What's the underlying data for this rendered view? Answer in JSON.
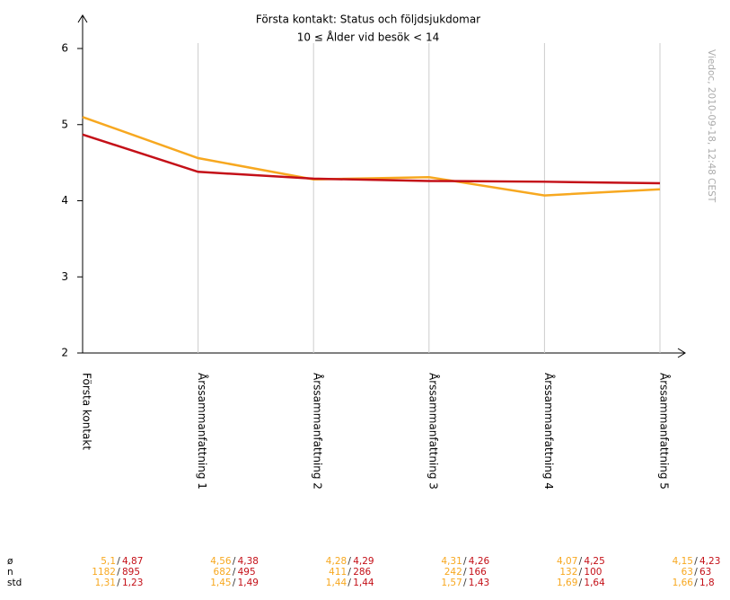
{
  "chart_data": {
    "type": "line",
    "title": "Första kontakt: Status och följdsjukdomar",
    "subtitle": "10 ≤ Ålder vid besök < 14",
    "watermark": "Viedoc, 2010-09-18, 12:48 CEST",
    "categories": [
      "Första kontakt",
      "Årssammanfattning 1",
      "Årssammanfattning 2",
      "Årssammanfattning 3",
      "Årssammanfattning 4",
      "Årssammanfattning 5"
    ],
    "series": [
      {
        "color": "#f7a820",
        "values": [
          5.1,
          4.56,
          4.28,
          4.31,
          4.07,
          4.15
        ],
        "value_labels": [
          "5,1",
          "4,56",
          "4,28",
          "4,31",
          "4,07",
          "4,15"
        ]
      },
      {
        "color": "#c41018",
        "values": [
          4.87,
          4.38,
          4.29,
          4.26,
          4.25,
          4.23
        ],
        "value_labels": [
          "4,87",
          "4,38",
          "4,29",
          "4,26",
          "4,25",
          "4,23"
        ]
      }
    ],
    "ylim": [
      2,
      6
    ],
    "yticks": [
      2,
      3,
      4,
      5,
      6
    ],
    "grid": true,
    "stats": {
      "row_labels": [
        "ø",
        "n",
        "std"
      ],
      "separator": "/",
      "n": [
        [
          "1182",
          "895"
        ],
        [
          "682",
          "495"
        ],
        [
          "411",
          "286"
        ],
        [
          "242",
          "166"
        ],
        [
          "132",
          "100"
        ],
        [
          "63",
          "63"
        ]
      ],
      "std": [
        [
          "1,31",
          "1,23"
        ],
        [
          "1,45",
          "1,49"
        ],
        [
          "1,44",
          "1,44"
        ],
        [
          "1,57",
          "1,43"
        ],
        [
          "1,69",
          "1,64"
        ],
        [
          "1,66",
          "1,8"
        ]
      ]
    }
  }
}
